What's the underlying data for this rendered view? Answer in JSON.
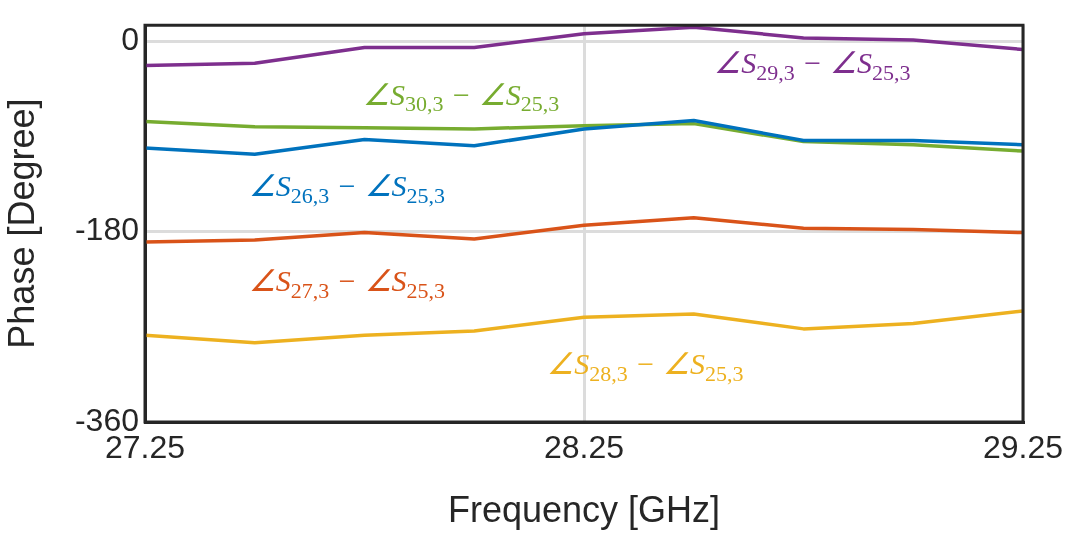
{
  "chart_data": {
    "type": "line",
    "xlabel": "Frequency [GHz]",
    "ylabel": "Phase [Degree]",
    "x": [
      27.25,
      27.5,
      27.75,
      28.0,
      28.25,
      28.5,
      28.75,
      29.0,
      29.25
    ],
    "xlim": [
      27.25,
      29.25
    ],
    "xticks": [
      27.25,
      28.25,
      29.25
    ],
    "ylim": [
      -360,
      15
    ],
    "yticks": [
      -360,
      -180,
      0
    ],
    "grid": true,
    "legend": false,
    "marker": "none",
    "line_style": "solid",
    "series": [
      {
        "name": "∠S$_{26,3}$ − ∠S$_{25,3}$",
        "color": "#0072bd",
        "values": [
          -101,
          -107,
          -93,
          -99,
          -83,
          -75,
          -94,
          -94,
          -98
        ]
      },
      {
        "name": "∠S$_{27,3}$ − ∠S$_{25,3}$",
        "color": "#d95319",
        "values": [
          -190,
          -188,
          -181,
          -187,
          -174,
          -167,
          -177,
          -178,
          -181
        ]
      },
      {
        "name": "∠S$_{28,3}$ − ∠S$_{25,3}$",
        "color": "#edb120",
        "values": [
          -278,
          -285,
          -278,
          -274,
          -261,
          -258,
          -272,
          -267,
          -255
        ]
      },
      {
        "name": "∠S$_{29,3}$ − ∠S$_{25,3}$",
        "color": "#7e2f8e",
        "values": [
          -23,
          -21,
          -6,
          -6,
          7,
          13,
          3,
          1,
          -8
        ]
      },
      {
        "name": "∠S$_{30,3}$ − ∠S$_{25,3}$",
        "color": "#77ac30",
        "values": [
          -76,
          -81,
          -82,
          -83,
          -80,
          -78,
          -95,
          -98,
          -104
        ]
      }
    ]
  }
}
